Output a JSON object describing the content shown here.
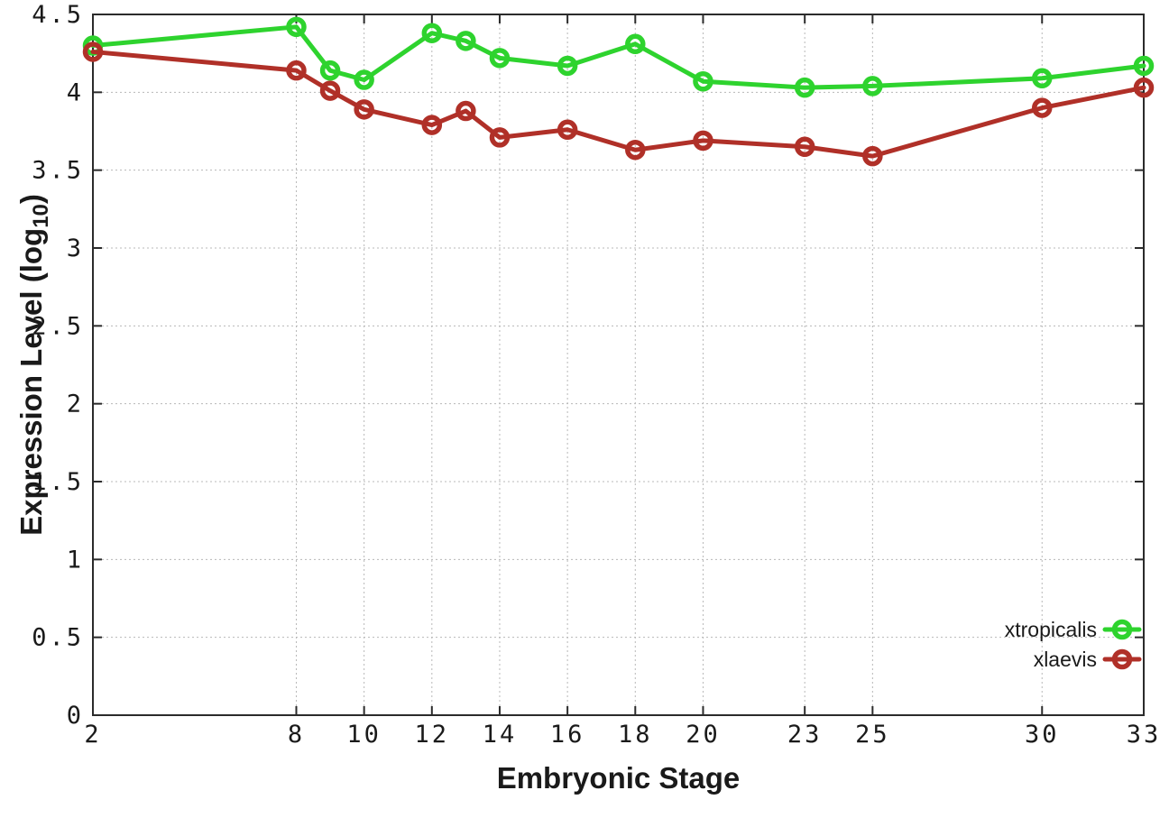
{
  "chart_data": {
    "type": "line",
    "title": "",
    "xlabel": "Embryonic Stage",
    "ylabel": "Expression Level (log10)",
    "ylabel_parts": {
      "main": "Expression Level (log",
      "sub": "10",
      "close": ")"
    },
    "x": [
      2,
      8,
      9,
      10,
      12,
      13,
      14,
      16,
      18,
      20,
      23,
      25,
      30,
      33
    ],
    "series": [
      {
        "name": "xtropicalis",
        "color": "#2ed32e",
        "marker": "open-circle",
        "values": [
          4.3,
          4.42,
          4.14,
          4.08,
          4.38,
          4.33,
          4.22,
          4.17,
          4.31,
          4.07,
          4.03,
          4.04,
          4.09,
          4.17
        ]
      },
      {
        "name": "xlaevis",
        "color": "#b03028",
        "marker": "open-circle",
        "values": [
          4.26,
          4.14,
          4.01,
          3.89,
          3.79,
          3.88,
          3.71,
          3.76,
          3.63,
          3.69,
          3.65,
          3.59,
          3.9,
          4.03
        ]
      }
    ],
    "xlim": [
      2,
      33
    ],
    "ylim": [
      0,
      4.5
    ],
    "xticks": [
      2,
      8,
      10,
      12,
      14,
      16,
      18,
      20,
      23,
      25,
      30,
      33
    ],
    "xtick_labels": [
      "2",
      "8",
      "10",
      "12",
      "14",
      "16",
      "18",
      "20",
      "23",
      "25",
      "30",
      "33"
    ],
    "yticks": [
      0,
      0.5,
      1,
      1.5,
      2,
      2.5,
      3,
      3.5,
      4,
      4.5
    ],
    "ytick_labels": [
      "0",
      "0.5",
      "1",
      "1.5",
      "2",
      "2.5",
      "3",
      "3.5",
      "4",
      "4.5"
    ],
    "grid": true,
    "legend_position": "bottom-right",
    "legend_entries": [
      "xtropicalis",
      "xlaevis"
    ]
  },
  "colors": {
    "background": "#ffffff",
    "axis": "#2b2b2b",
    "grid": "#b8b8b8",
    "text": "#1a1a1a",
    "series_xtropicalis": "#2ed32e",
    "series_xlaevis": "#b03028"
  }
}
